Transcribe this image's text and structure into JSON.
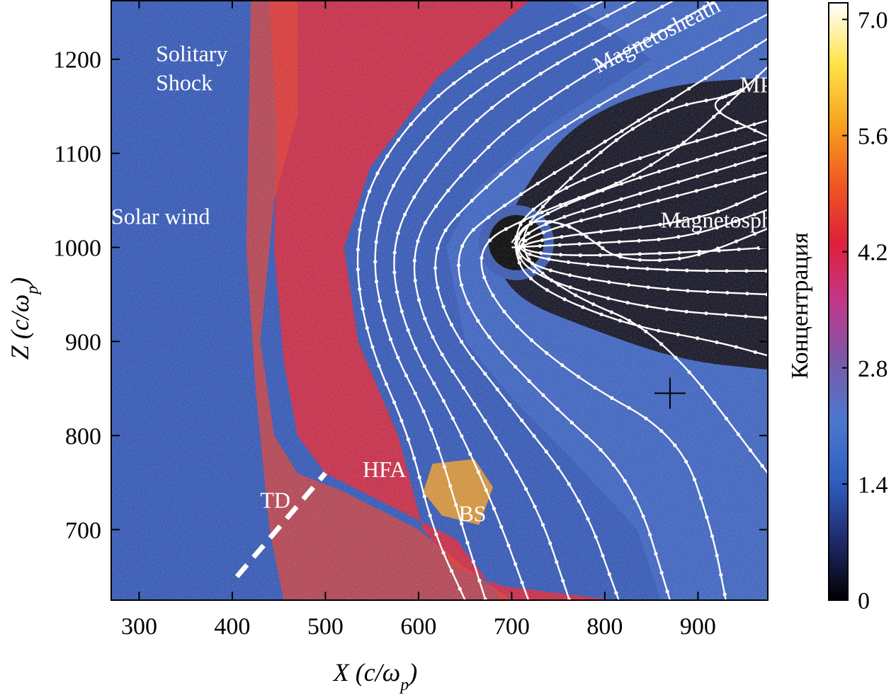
{
  "chart_data": {
    "type": "heatmap",
    "title": "",
    "xlabel": "X (c/ω_p)",
    "ylabel": "Z (c/ω_p)",
    "xlim": [
      270,
      975
    ],
    "ylim": [
      625,
      1263
    ],
    "x_ticks": [
      300,
      400,
      500,
      600,
      700,
      800,
      900
    ],
    "y_ticks": [
      700,
      800,
      900,
      1000,
      1100,
      1200
    ],
    "colorbar": {
      "label": "Концентрация",
      "range": [
        0,
        7.2
      ],
      "ticks": [
        0,
        1.4,
        2.8,
        4.2,
        5.6,
        7.0
      ],
      "tick_labels": [
        "0",
        "1.4",
        "2.8",
        "4.2",
        "5.6",
        "7.0"
      ],
      "colors": [
        "#000000",
        "#1f2a6b",
        "#2f5fbf",
        "#4a78d0",
        "#7a5aa8",
        "#c2368a",
        "#e0203a",
        "#f05a20",
        "#f7a51e",
        "#ffe44a",
        "#ffffff"
      ]
    },
    "annotations": [
      {
        "text": "Solitary",
        "x": 318,
        "z": 1198
      },
      {
        "text": "Shock",
        "x": 318,
        "z": 1167
      },
      {
        "text": "Solar wind",
        "x": 270,
        "z": 1025
      },
      {
        "text": "Magnetosheath",
        "x": 793,
        "z": 1185
      },
      {
        "text": "MP",
        "x": 945,
        "z": 1165
      },
      {
        "text": "Magnetosphere",
        "x": 860,
        "z": 1021
      },
      {
        "text": "HFA",
        "x": 540,
        "z": 756
      },
      {
        "text": "TD",
        "x": 430,
        "z": 723
      },
      {
        "text": "BS",
        "x": 643,
        "z": 709
      }
    ],
    "features": {
      "td_line": [
        [
          405,
          650
        ],
        [
          500,
          760
        ]
      ],
      "bow_shock_nose_x": 520,
      "magnetopause_nose_x": 640,
      "dipole_center": [
        705,
        1005
      ],
      "cross_marker": [
        870,
        845
      ]
    },
    "field_lines": [
      [
        [
          800,
          1263
        ],
        [
          640,
          1185
        ],
        [
          555,
          1090
        ],
        [
          530,
          1000
        ],
        [
          545,
          900
        ],
        [
          590,
          800
        ],
        [
          615,
          700
        ],
        [
          650,
          625
        ]
      ],
      [
        [
          835,
          1263
        ],
        [
          665,
          1175
        ],
        [
          578,
          1085
        ],
        [
          548,
          1000
        ],
        [
          565,
          905
        ],
        [
          615,
          810
        ],
        [
          648,
          700
        ],
        [
          672,
          625
        ]
      ],
      [
        [
          875,
          1263
        ],
        [
          690,
          1165
        ],
        [
          605,
          1075
        ],
        [
          568,
          1000
        ],
        [
          585,
          910
        ],
        [
          640,
          815
        ],
        [
          685,
          715
        ],
        [
          718,
          625
        ]
      ],
      [
        [
          920,
          1263
        ],
        [
          720,
          1150
        ],
        [
          632,
          1065
        ],
        [
          590,
          1000
        ],
        [
          605,
          915
        ],
        [
          668,
          822
        ],
        [
          728,
          725
        ],
        [
          762,
          625
        ]
      ],
      [
        [
          975,
          1248
        ],
        [
          755,
          1132
        ],
        [
          660,
          1055
        ],
        [
          612,
          1000
        ],
        [
          628,
          920
        ],
        [
          700,
          830
        ],
        [
          775,
          735
        ],
        [
          815,
          625
        ]
      ],
      [
        [
          975,
          1222
        ],
        [
          800,
          1112
        ],
        [
          690,
          1045
        ],
        [
          636,
          1000
        ],
        [
          655,
          925
        ],
        [
          735,
          840
        ],
        [
          830,
          755
        ],
        [
          870,
          625
        ]
      ],
      [
        [
          975,
          1192
        ],
        [
          855,
          1082
        ],
        [
          722,
          1035
        ],
        [
          658,
          1000
        ],
        [
          685,
          932
        ],
        [
          770,
          860
        ],
        [
          880,
          800
        ],
        [
          915,
          700
        ],
        [
          930,
          625
        ]
      ],
      [
        [
          975,
          1118
        ],
        [
          905,
          1150
        ],
        [
          950,
          1170
        ],
        [
          945,
          1163
        ],
        [
          850,
          1145
        ],
        [
          745,
          1060
        ],
        [
          700,
          1000
        ],
        [
          760,
          950
        ],
        [
          860,
          910
        ],
        [
          975,
          760
        ]
      ],
      [
        [
          975,
          1135
        ],
        [
          800,
          1085
        ],
        [
          715,
          1040
        ],
        [
          700,
          1000
        ],
        [
          720,
          960
        ],
        [
          820,
          918
        ],
        [
          920,
          900
        ],
        [
          975,
          885
        ]
      ],
      [
        [
          975,
          1115
        ],
        [
          820,
          1070
        ],
        [
          720,
          1030
        ],
        [
          700,
          1000
        ],
        [
          725,
          968
        ],
        [
          840,
          935
        ],
        [
          975,
          925
        ]
      ],
      [
        [
          975,
          1098
        ],
        [
          830,
          1055
        ],
        [
          730,
          1025
        ],
        [
          700,
          1000
        ],
        [
          730,
          975
        ],
        [
          855,
          955
        ],
        [
          975,
          950
        ]
      ],
      [
        [
          975,
          1080
        ],
        [
          840,
          1045
        ],
        [
          740,
          1020
        ],
        [
          700,
          1000
        ],
        [
          740,
          985
        ],
        [
          870,
          975
        ],
        [
          975,
          975
        ]
      ],
      [
        [
          975,
          1060
        ],
        [
          900,
          1028
        ],
        [
          750,
          1012
        ],
        [
          700,
          1000
        ],
        [
          750,
          990
        ],
        [
          900,
          995
        ],
        [
          975,
          1000
        ]
      ],
      [
        [
          975,
          1040
        ],
        [
          890,
          1010
        ],
        [
          800,
          1005
        ],
        [
          700,
          1000
        ]
      ],
      [
        [
          975,
          1020
        ],
        [
          900,
          990
        ],
        [
          850,
          985
        ],
        [
          810,
          990
        ],
        [
          790,
          1005
        ],
        [
          760,
          1025
        ],
        [
          720,
          1030
        ],
        [
          700,
          1005
        ]
      ]
    ]
  }
}
